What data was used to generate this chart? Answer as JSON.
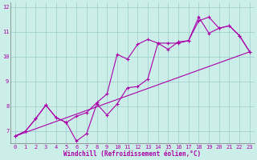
{
  "xlabel": "Windchill (Refroidissement éolien,°C)",
  "xlim": [
    -0.5,
    23.5
  ],
  "ylim": [
    6.5,
    12.2
  ],
  "yticks": [
    7,
    8,
    9,
    10,
    11,
    12
  ],
  "xticks": [
    0,
    1,
    2,
    3,
    4,
    5,
    6,
    7,
    8,
    9,
    10,
    11,
    12,
    13,
    14,
    15,
    16,
    17,
    18,
    19,
    20,
    21,
    22,
    23
  ],
  "background_color": "#cceee8",
  "line_color": "#aa00aa",
  "grid_color": "#99cccc",
  "line1_x": [
    0,
    1,
    2,
    3,
    4,
    5,
    6,
    7,
    8,
    9,
    10,
    11,
    12,
    13,
    14,
    15,
    16,
    17,
    18,
    19,
    20,
    21,
    22,
    23
  ],
  "line1_y": [
    6.8,
    7.0,
    7.5,
    8.05,
    7.55,
    7.35,
    6.6,
    6.9,
    8.1,
    7.65,
    8.1,
    8.75,
    8.8,
    9.1,
    10.55,
    10.55,
    10.55,
    10.65,
    11.45,
    11.6,
    11.15,
    11.25,
    10.85,
    10.2
  ],
  "line2_x": [
    0,
    1,
    2,
    3,
    4,
    5,
    6,
    7,
    8,
    9,
    10,
    11,
    12,
    13,
    14,
    15,
    16,
    17,
    18,
    19,
    20,
    21,
    22,
    23
  ],
  "line2_y": [
    6.8,
    7.0,
    7.5,
    8.05,
    7.55,
    7.35,
    7.6,
    7.75,
    8.15,
    8.5,
    10.1,
    9.9,
    10.5,
    10.7,
    10.55,
    10.3,
    10.6,
    10.65,
    11.6,
    10.95,
    11.15,
    11.25,
    10.85,
    10.2
  ],
  "line3_x": [
    0,
    23
  ],
  "line3_y": [
    6.8,
    10.2
  ]
}
